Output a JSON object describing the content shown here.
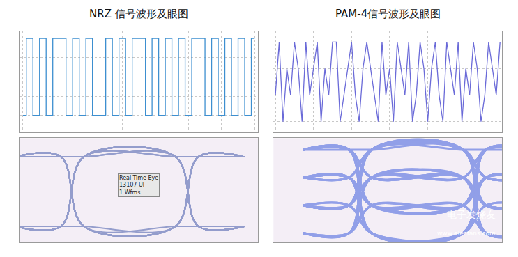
{
  "chart_data": [
    {
      "type": "line",
      "title": "NRZ 信号波形及眼图",
      "line_style": "step",
      "color": "#3d8fd0",
      "grid": true,
      "tick_labels": false,
      "values": [
        0,
        1,
        0,
        1,
        0,
        1,
        1,
        0,
        1,
        0,
        1,
        0,
        0,
        1,
        0,
        1,
        0,
        1,
        1,
        0,
        1,
        0,
        1,
        0,
        1,
        0,
        1,
        1,
        0,
        1,
        0,
        1,
        0,
        1,
        0,
        1
      ],
      "xlim": [
        -0.5,
        35.5
      ],
      "xticks": [
        0,
        5,
        10,
        15,
        20,
        25,
        30,
        35
      ],
      "ylim": [
        -0.22,
        1.09
      ],
      "yticks": [
        0,
        0.25,
        0.5,
        0.75,
        1
      ]
    },
    {
      "type": "line",
      "title": "PAM-4信号波形及眼图",
      "line_style": "solid",
      "color": "#6a6ad8",
      "grid": true,
      "tick_labels": false,
      "values": [
        1,
        3,
        0,
        2,
        1,
        3,
        2,
        0,
        3,
        1,
        2,
        3,
        0,
        2,
        1,
        3,
        3,
        0,
        1,
        2,
        3,
        1,
        0,
        2,
        3,
        2,
        1,
        0,
        3,
        1,
        2,
        0,
        3,
        2,
        1,
        3,
        0,
        1,
        3,
        2,
        0,
        2,
        3,
        1,
        0,
        3,
        2,
        1,
        3,
        0,
        2,
        1,
        3,
        2,
        0,
        1,
        3,
        2,
        1,
        3
      ],
      "xlim": [
        -0.5,
        59.5
      ],
      "xticks": [
        0,
        10,
        20,
        30,
        40,
        50
      ],
      "ylim": [
        -0.4,
        3.4
      ],
      "yticks": [
        0,
        1,
        2,
        3
      ]
    },
    {
      "type": "eye",
      "line_style": "spline",
      "color": "#1f3a9a",
      "grid": false,
      "tick_labels": false,
      "values": [
        0,
        1,
        0,
        1,
        0,
        1,
        1,
        0,
        1,
        0,
        1,
        0,
        0,
        1,
        0,
        1,
        0,
        1,
        1,
        0,
        1,
        0,
        1,
        0,
        1,
        0,
        1,
        1,
        0,
        1,
        0,
        1,
        0,
        1,
        0,
        1
      ],
      "xlim": [
        -0.96,
        1.12
      ],
      "xticks": [
        -0.5,
        0.5
      ],
      "ylim": [
        -0.23,
        1.27
      ],
      "yticks": [
        0,
        1
      ],
      "annotations": [
        "Real-Time Eye",
        "13107 UI",
        "1 Wfms"
      ]
    },
    {
      "type": "eye",
      "line_style": "spline",
      "color": "#1a3fd8",
      "grid": false,
      "tick_labels": false,
      "values": [
        1,
        3,
        0,
        2,
        1,
        3,
        2,
        0,
        3,
        1,
        2,
        3,
        0,
        2,
        1,
        3,
        3,
        0,
        1,
        2,
        3,
        1,
        0,
        2,
        3,
        2,
        1,
        0,
        3,
        1,
        2,
        0,
        3,
        2,
        1,
        3,
        0,
        1,
        3,
        2,
        0,
        2,
        3,
        1,
        0,
        3,
        2,
        1,
        3,
        0,
        2,
        1,
        3,
        2,
        0,
        1,
        3,
        2,
        1,
        3
      ],
      "xlim": [
        -1.26,
        0.74
      ],
      "xticks": [
        -0.5,
        0.5
      ],
      "ylim": [
        -0.33,
        3.42
      ],
      "yticks": [
        0,
        1,
        2,
        3
      ],
      "annotations": [
        "电子发烧友",
        "www.elecfans.com"
      ]
    }
  ]
}
